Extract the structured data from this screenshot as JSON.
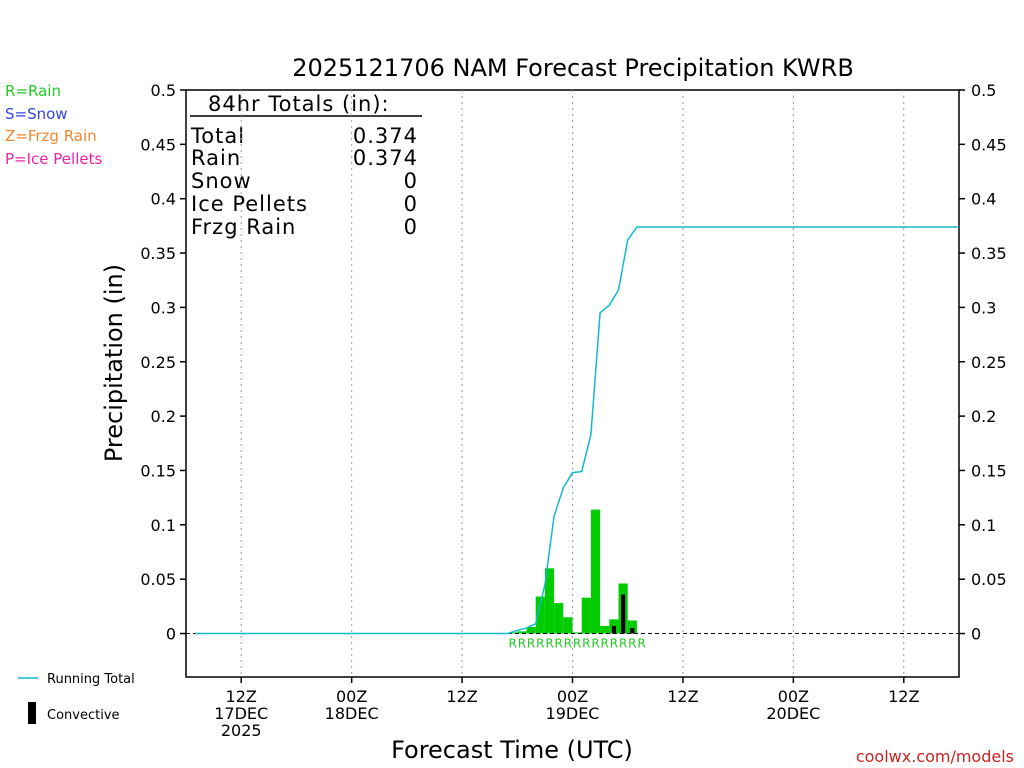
{
  "title": "2025121706 NAM Forecast Precipitation KWRB",
  "ylabel": "Precipitation (in)",
  "xlabel": "Forecast Time (UTC)",
  "watermark": "coolwx.com/models",
  "legend_types": [
    {
      "text": "R=Rain",
      "color": "#22cc22"
    },
    {
      "text": "S=Snow",
      "color": "#3344dd"
    },
    {
      "text": "Z=Frzg Rain",
      "color": "#ee8833"
    },
    {
      "text": "P=Ice Pellets",
      "color": "#ee22aa"
    }
  ],
  "legend_series": [
    {
      "text": "Running Total",
      "color": "#11bbcc"
    },
    {
      "text": "Convective",
      "color": "#000000"
    }
  ],
  "totals": {
    "heading": "84hr Totals (in):",
    "rows": [
      {
        "label": "Total",
        "value": "0.374"
      },
      {
        "label": "Rain",
        "value": "0.374"
      },
      {
        "label": "Snow",
        "value": "0"
      },
      {
        "label": "Ice Pellets",
        "value": "0"
      },
      {
        "label": "Frzg Rain",
        "value": "0"
      }
    ]
  },
  "colors": {
    "precip_bar": "#00cc00",
    "convective_bar": "#000000",
    "running_total": "#11bbcc",
    "rain_marker": "#22cc22"
  },
  "chart_data": {
    "type": "bar",
    "title": "2025121706 NAM Forecast Precipitation KWRB",
    "xlabel": "Forecast Time (UTC)",
    "ylabel": "Precipitation (in)",
    "x_units": "forecast hour",
    "xlim": [
      0,
      84
    ],
    "ylim": [
      -0.04,
      0.5
    ],
    "yticks": [
      0,
      0.05,
      0.1,
      0.15,
      0.2,
      0.25,
      0.3,
      0.35,
      0.4,
      0.45,
      0.5
    ],
    "ytick_labels": [
      "0",
      "0.05",
      "0.1",
      "0.15",
      "0.2",
      "0.25",
      "0.3",
      "0.35",
      "0.4",
      "0.45",
      "0.5"
    ],
    "xticks": [
      {
        "hour": 6,
        "lines": [
          "12Z",
          "17DEC",
          "2025"
        ]
      },
      {
        "hour": 18,
        "lines": [
          "00Z",
          "18DEC"
        ]
      },
      {
        "hour": 30,
        "lines": [
          "12Z"
        ]
      },
      {
        "hour": 42,
        "lines": [
          "00Z",
          "19DEC"
        ]
      },
      {
        "hour": 54,
        "lines": [
          "12Z"
        ]
      },
      {
        "hour": 66,
        "lines": [
          "00Z",
          "20DEC"
        ]
      },
      {
        "hour": 78,
        "lines": [
          "12Z"
        ]
      }
    ],
    "grid": "vertical dotted",
    "right_axis": true,
    "series": [
      {
        "name": "Running Total",
        "kind": "line",
        "x": [
          1,
          35,
          36,
          37,
          38,
          39,
          40,
          41,
          42,
          43,
          44,
          45,
          46,
          47,
          48,
          49,
          50,
          84
        ],
        "values": [
          0,
          0,
          0.003,
          0.005,
          0.009,
          0.045,
          0.108,
          0.134,
          0.148,
          0.149,
          0.183,
          0.295,
          0.302,
          0.316,
          0.362,
          0.374,
          0.374,
          0.374
        ]
      },
      {
        "name": "Precipitation",
        "kind": "bar",
        "x": [
          36,
          37,
          38,
          39,
          40,
          41,
          42,
          43,
          44,
          45,
          46,
          47,
          48,
          49
        ],
        "values": [
          0.001,
          0.002,
          0.006,
          0.034,
          0.06,
          0.028,
          0.015,
          0.001,
          0.033,
          0.114,
          0.007,
          0.013,
          0.046,
          0.012
        ]
      },
      {
        "name": "Convective",
        "kind": "bar",
        "x": [
          47,
          48,
          49
        ],
        "values": [
          0.007,
          0.036,
          0.005
        ]
      }
    ],
    "ptype_markers": {
      "x": [
        35,
        36,
        37,
        38,
        39,
        40,
        41,
        42,
        43,
        44,
        45,
        46,
        47,
        48,
        49
      ],
      "labels": [
        "R",
        "R",
        "R",
        "R",
        "R",
        "R",
        "R",
        "R",
        "R",
        "R",
        "R",
        "R",
        "R",
        "R",
        "R"
      ]
    }
  }
}
